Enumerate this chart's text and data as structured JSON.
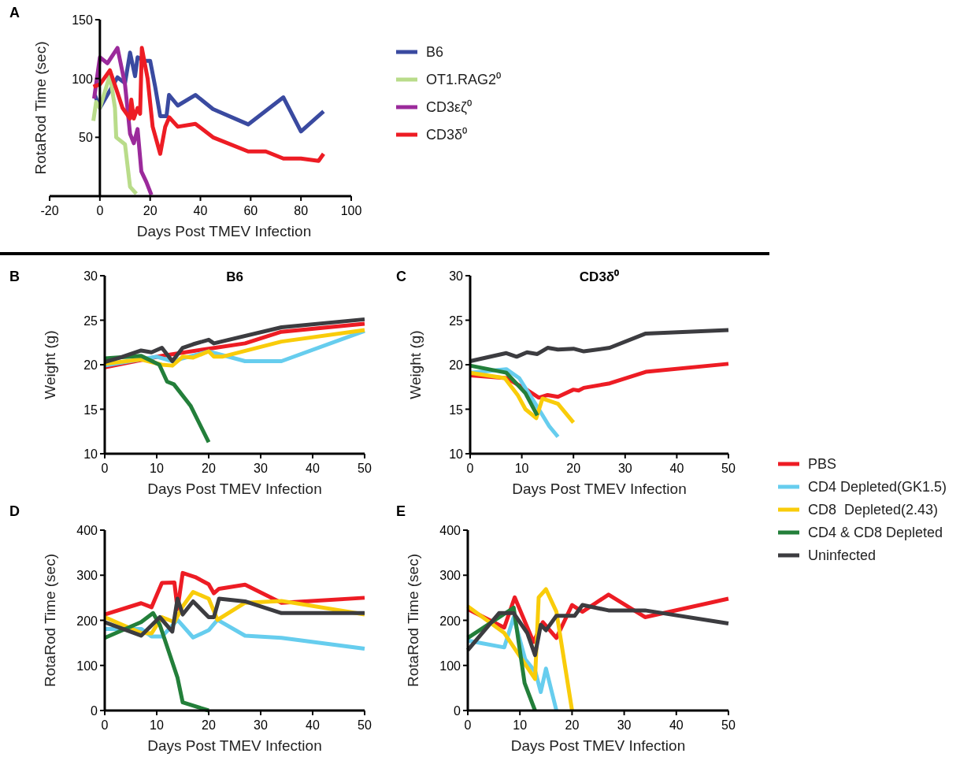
{
  "chart_data": [
    {
      "type": "line",
      "annotations": [
        "A"
      ],
      "xlabel": "Days Post TMEV Infection",
      "ylabel": "RotaRod Time (sec)",
      "xlim": [
        -20,
        100
      ],
      "xticks": [
        -20,
        0,
        20,
        40,
        60,
        80,
        100
      ],
      "ylim": [
        0,
        150
      ],
      "yticks": [
        50,
        100,
        150
      ],
      "legend": "right",
      "series": [
        {
          "name": "B6",
          "color": "#3a4aa0",
          "x": [
            -2,
            0,
            7,
            10,
            12,
            14,
            15,
            18,
            20,
            22,
            24,
            26.5,
            27.5,
            31,
            38,
            45,
            59,
            73,
            80,
            89
          ],
          "values": [
            86,
            75,
            101,
            96,
            122,
            102,
            118,
            115,
            115,
            93,
            68,
            68,
            86,
            77,
            86,
            74,
            61,
            84,
            55,
            72
          ]
        },
        {
          "name": "OT1.RAG2⁰",
          "color": "#b9dc8a",
          "x": [
            -2.6,
            -1.5,
            0,
            4,
            6,
            6.5,
            10,
            12,
            14.5
          ],
          "values": [
            64,
            80,
            75,
            103,
            75,
            50,
            44,
            8,
            2
          ]
        },
        {
          "name": "CD3εζ⁰",
          "color": "#9b2a9b",
          "x": [
            -2.3,
            0,
            3,
            7,
            10,
            12,
            13.5,
            15,
            16.5,
            18.5,
            20.5
          ],
          "values": [
            83,
            118,
            113,
            126,
            95,
            53,
            45,
            57,
            21,
            12,
            1
          ]
        },
        {
          "name": "CD3δ⁰",
          "color": "#ed1c24",
          "x": [
            -2.6,
            0,
            4,
            7,
            9,
            12,
            12.5,
            13.5,
            15,
            16,
            16.7,
            19,
            21,
            24,
            26,
            27.6,
            31,
            38,
            45,
            59,
            66,
            73,
            80,
            87,
            89
          ],
          "values": [
            93,
            95,
            107,
            88,
            75,
            66,
            82,
            66,
            75,
            70,
            126,
            100,
            59,
            36,
            59,
            67,
            59,
            61.5,
            50,
            38,
            38,
            32,
            32,
            30,
            36
          ]
        }
      ]
    },
    {
      "type": "line",
      "title": "B6",
      "annotations": [
        "B"
      ],
      "xlabel": "Days Post TMEV Infection",
      "ylabel": "Weight (g)",
      "xlim": [
        0,
        50
      ],
      "xticks": [
        0,
        10,
        20,
        30,
        40,
        50
      ],
      "ylim": [
        10,
        30
      ],
      "yticks": [
        10,
        15,
        20,
        25,
        30
      ],
      "series": [
        {
          "color": "#ed1c24",
          "x": [
            0,
            11,
            20,
            27,
            34,
            50
          ],
          "values": [
            19.7,
            21,
            21.8,
            22.4,
            23.7,
            24.6
          ]
        },
        {
          "color": "#66cdee",
          "x": [
            0,
            10,
            13,
            20,
            27,
            34,
            50
          ],
          "values": [
            19.9,
            20.9,
            20.4,
            21.5,
            20.4,
            20.4,
            23.8
          ]
        },
        {
          "color": "#f9cc0a",
          "x": [
            0,
            7,
            11,
            13,
            15,
            17,
            20,
            21,
            22.6,
            34,
            50
          ],
          "values": [
            20.1,
            20.6,
            20,
            19.9,
            20.9,
            20.8,
            21.5,
            20.9,
            20.9,
            22.6,
            23.9
          ]
        },
        {
          "color": "#237f3a",
          "x": [
            0,
            7,
            10.5,
            12,
            13.3,
            16.5,
            20
          ],
          "values": [
            20.7,
            21,
            20,
            18.1,
            17.8,
            15.4,
            11.3
          ]
        },
        {
          "color": "#3c3c40",
          "x": [
            0,
            3,
            7,
            9,
            11,
            13,
            15,
            17,
            20,
            21,
            34,
            50
          ],
          "values": [
            20.3,
            20.8,
            21.6,
            21.4,
            21.9,
            20.4,
            21.9,
            22.3,
            22.8,
            22.4,
            24.2,
            25.1
          ]
        }
      ]
    },
    {
      "type": "line",
      "title": "CD3δ⁰",
      "annotations": [
        "C"
      ],
      "xlabel": "Days Post TMEV Infection",
      "ylabel": "Weight (g)",
      "xlim": [
        0,
        50
      ],
      "xticks": [
        0,
        10,
        20,
        30,
        40,
        50
      ],
      "ylim": [
        10,
        30
      ],
      "yticks": [
        10,
        15,
        20,
        25,
        30
      ],
      "legend": "bottom right",
      "series": [
        {
          "name": "PBS",
          "color": "#ed1c24",
          "x": [
            0,
            7,
            11.2,
            13.3,
            15,
            17,
            20,
            21,
            22,
            27,
            34,
            50
          ],
          "values": [
            18.8,
            18.5,
            17.1,
            16.3,
            16.6,
            16.4,
            17.2,
            17.1,
            17.4,
            17.9,
            19.2,
            20.1
          ]
        },
        {
          "name": "CD4 Depleted(GK1.5)",
          "color": "#66cdee",
          "x": [
            0,
            7,
            9.5,
            11,
            13.3,
            15.3,
            17
          ],
          "values": [
            19.1,
            19.5,
            18.5,
            17.1,
            15,
            13.1,
            11.9
          ]
        },
        {
          "name": "CD8  Depleted(2.43)",
          "color": "#f9cc0a",
          "x": [
            0,
            6.7,
            9.2,
            10.7,
            12.8,
            14,
            17,
            20
          ],
          "values": [
            19.1,
            18.5,
            16.6,
            15,
            14,
            16.2,
            15.6,
            13.5
          ]
        },
        {
          "name": "CD4 & CD8 Depleted",
          "color": "#237f3a",
          "x": [
            0,
            7,
            10.7,
            13
          ],
          "values": [
            19.9,
            19.1,
            16.8,
            14.3
          ]
        },
        {
          "name": "Uninfected",
          "color": "#3c3c40",
          "x": [
            0,
            7,
            9,
            11,
            13,
            15,
            17,
            20,
            22,
            27,
            34,
            50
          ],
          "values": [
            20.4,
            21.3,
            20.9,
            21.4,
            21.2,
            21.9,
            21.7,
            21.8,
            21.5,
            21.9,
            23.5,
            23.9
          ]
        }
      ]
    },
    {
      "type": "line",
      "annotations": [
        "D"
      ],
      "xlabel": "Days Post TMEV Infection",
      "ylabel": "RotaRod Time (sec)",
      "xlim": [
        0,
        50
      ],
      "xticks": [
        0,
        10,
        20,
        30,
        40,
        50
      ],
      "ylim": [
        0,
        400
      ],
      "yticks": [
        0,
        100,
        200,
        300,
        400
      ],
      "series": [
        {
          "color": "#ed1c24",
          "x": [
            0,
            7,
            9,
            11,
            13.4,
            14,
            15,
            17.4,
            20,
            21,
            22,
            27,
            34,
            50
          ],
          "values": [
            213,
            238,
            229,
            283,
            284,
            225,
            305,
            296,
            280,
            260,
            270,
            279,
            239,
            250
          ]
        },
        {
          "color": "#66cdee",
          "x": [
            0,
            7,
            9,
            11,
            14,
            17,
            20,
            21.7,
            27,
            34,
            50
          ],
          "values": [
            181,
            181,
            164,
            164,
            201,
            162,
            178,
            201,
            166,
            161,
            137
          ]
        },
        {
          "color": "#f9cc0a",
          "x": [
            0,
            7,
            9,
            11,
            13.4,
            15,
            17,
            20,
            21.7,
            27,
            34,
            50
          ],
          "values": [
            207,
            172,
            171,
            207,
            196,
            231,
            263,
            248,
            201,
            239,
            243,
            213
          ]
        },
        {
          "color": "#237f3a",
          "x": [
            0,
            7,
            9.3,
            10.6,
            14,
            15,
            20
          ],
          "values": [
            161,
            196,
            216,
            190,
            73,
            18,
            0
          ]
        },
        {
          "color": "#3c3c40",
          "x": [
            0,
            7,
            10.6,
            13,
            14,
            15,
            17,
            20,
            21,
            22,
            27,
            34,
            50
          ],
          "values": [
            196,
            166,
            207,
            175,
            248,
            213,
            242,
            207,
            207,
            248,
            242,
            216,
            216
          ]
        }
      ]
    },
    {
      "type": "line",
      "annotations": [
        "E"
      ],
      "xlabel": "Days Post TMEV Infection",
      "ylabel": "RotaRod Time (sec)",
      "xlim": [
        0,
        50
      ],
      "xticks": [
        0,
        10,
        20,
        30,
        40,
        50
      ],
      "ylim": [
        0,
        400
      ],
      "yticks": [
        0,
        100,
        200,
        300,
        400
      ],
      "series": [
        {
          "color": "#ed1c24",
          "x": [
            0,
            7,
            9,
            12.6,
            14.4,
            17,
            20,
            22,
            27,
            34,
            50
          ],
          "values": [
            225,
            184,
            251,
            152,
            196,
            161,
            234,
            219,
            257,
            207,
            248
          ]
        },
        {
          "color": "#66cdee",
          "x": [
            0,
            7,
            8.8,
            11,
            13,
            14,
            15,
            17
          ],
          "values": [
            155,
            140,
            207,
            114,
            85,
            41,
            93,
            0
          ]
        },
        {
          "color": "#f9cc0a",
          "x": [
            0,
            7,
            12.9,
            13.6,
            15,
            17,
            20
          ],
          "values": [
            231,
            172,
            70,
            251,
            269,
            219,
            0
          ]
        },
        {
          "color": "#237f3a",
          "x": [
            0,
            8.8,
            10.9,
            12.9
          ],
          "values": [
            161,
            228,
            61,
            0
          ]
        },
        {
          "color": "#3c3c40",
          "x": [
            0,
            6,
            8.8,
            11.4,
            12.9,
            14,
            15,
            17,
            20.5,
            22,
            27,
            34,
            50
          ],
          "values": [
            134,
            216,
            216,
            172,
            123,
            190,
            178,
            210,
            210,
            234,
            222,
            222,
            193
          ]
        }
      ]
    }
  ]
}
